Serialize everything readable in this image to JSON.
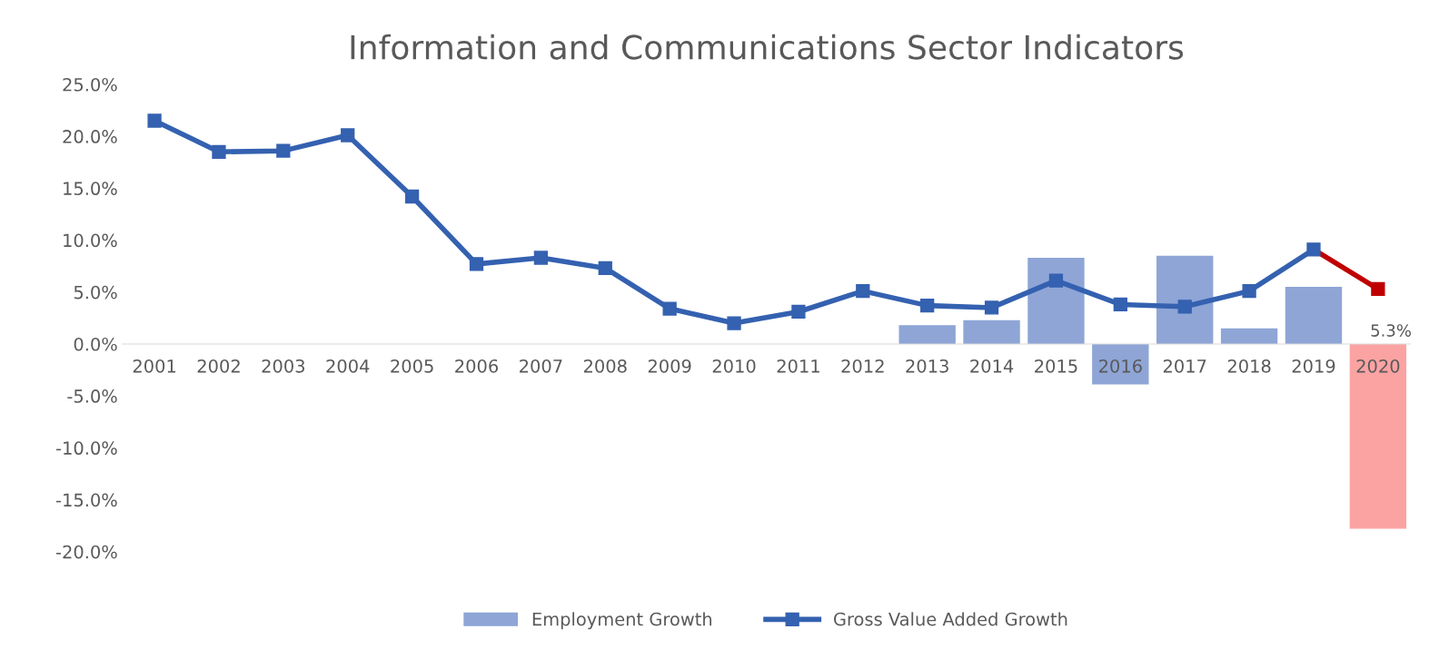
{
  "chart_data": {
    "type": "bar",
    "title": "Information and Communications Sector Indicators",
    "categories": [
      "2001",
      "2002",
      "2003",
      "2004",
      "2005",
      "2006",
      "2007",
      "2008",
      "2009",
      "2010",
      "2011",
      "2012",
      "2013",
      "2014",
      "2015",
      "2016",
      "2017",
      "2018",
      "2019",
      "2020"
    ],
    "series": [
      {
        "name": "Employment Growth",
        "color": "#8ea5d6",
        "colors": [
          "#8ea5d6",
          "#8ea5d6",
          "#8ea5d6",
          "#8ea5d6",
          "#8ea5d6",
          "#8ea5d6",
          "#8ea5d6",
          "#8ea5d6",
          "#8ea5d6",
          "#8ea5d6",
          "#8ea5d6",
          "#8ea5d6",
          "#8ea5d6",
          "#8ea5d6",
          "#8ea5d6",
          "#8ea5d6",
          "#8ea5d6",
          "#8ea5d6",
          "#8ea5d6",
          "#fba3a3"
        ],
        "values": [
          null,
          null,
          null,
          null,
          null,
          null,
          null,
          null,
          null,
          null,
          null,
          null,
          1.8,
          2.3,
          8.3,
          -3.9,
          8.5,
          1.5,
          5.5,
          -17.8
        ]
      },
      {
        "name": "Gross Value Added Growth",
        "type": "line",
        "color": "#3461b0",
        "marker": "square",
        "values": [
          21.5,
          18.5,
          18.6,
          20.1,
          14.2,
          7.7,
          8.3,
          7.3,
          3.4,
          2.0,
          3.1,
          5.1,
          3.7,
          3.5,
          6.1,
          3.8,
          3.6,
          5.1,
          9.1,
          null
        ]
      },
      {
        "type": "line",
        "color": "#c00000",
        "marker": "square",
        "values": [
          null,
          null,
          null,
          null,
          null,
          null,
          null,
          null,
          null,
          null,
          null,
          null,
          null,
          null,
          null,
          null,
          null,
          null,
          9.1,
          5.3
        ],
        "value_labels": [
          null,
          null,
          null,
          null,
          null,
          null,
          null,
          null,
          null,
          null,
          null,
          null,
          null,
          null,
          null,
          null,
          null,
          null,
          null,
          "5.3%"
        ]
      }
    ],
    "ylim": [
      -20,
      25
    ],
    "yticks": [
      {
        "value": 25,
        "label": "25.0%"
      },
      {
        "value": 20,
        "label": "20.0%"
      },
      {
        "value": 15,
        "label": "15.0%"
      },
      {
        "value": 10,
        "label": "10.0%"
      },
      {
        "value": 5,
        "label": "5.0%"
      },
      {
        "value": 0,
        "label": "0.0%"
      },
      {
        "value": -5,
        "label": "-5.0%"
      },
      {
        "value": -10,
        "label": "-10.0%"
      },
      {
        "value": -15,
        "label": "-15.0%"
      },
      {
        "value": -20,
        "label": "-20.0%"
      }
    ],
    "grid": false,
    "legend": "bottom"
  }
}
